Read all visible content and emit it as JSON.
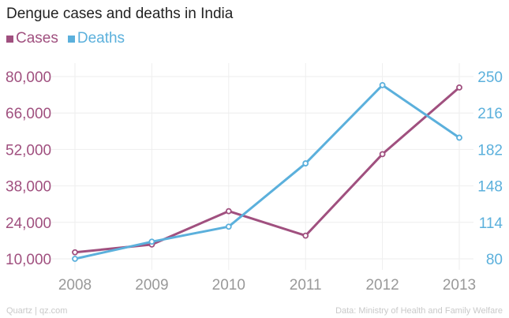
{
  "chart_data": {
    "type": "line",
    "title": "Dengue cases and deaths in India",
    "categories": [
      "2008",
      "2009",
      "2010",
      "2011",
      "2012",
      "2013"
    ],
    "series": [
      {
        "name": "Cases",
        "axis": "left",
        "color": "#a0507f",
        "values": [
          12500,
          15500,
          28300,
          18900,
          50200,
          75800
        ]
      },
      {
        "name": "Deaths",
        "axis": "right",
        "color": "#5bb0dc",
        "values": [
          80,
          96,
          110,
          169,
          242,
          193
        ]
      }
    ],
    "left_axis": {
      "min": 10000,
      "max": 80000,
      "ticks": [
        10000,
        24000,
        38000,
        52000,
        66000,
        80000
      ],
      "tick_labels": [
        "10,000",
        "24,000",
        "38,000",
        "52,000",
        "66,000",
        "80,000"
      ],
      "color": "#a0507f"
    },
    "right_axis": {
      "min": 80,
      "max": 250,
      "ticks": [
        80,
        114,
        148,
        182,
        216,
        250
      ],
      "tick_labels": [
        "80",
        "114",
        "148",
        "182",
        "216",
        "250"
      ],
      "color": "#5bb0dc"
    },
    "grid": true,
    "legend": "top-left"
  },
  "footer": {
    "source_left": "Quartz | qz.com",
    "source_right": "Data: Ministry of Health and Family Welfare"
  }
}
